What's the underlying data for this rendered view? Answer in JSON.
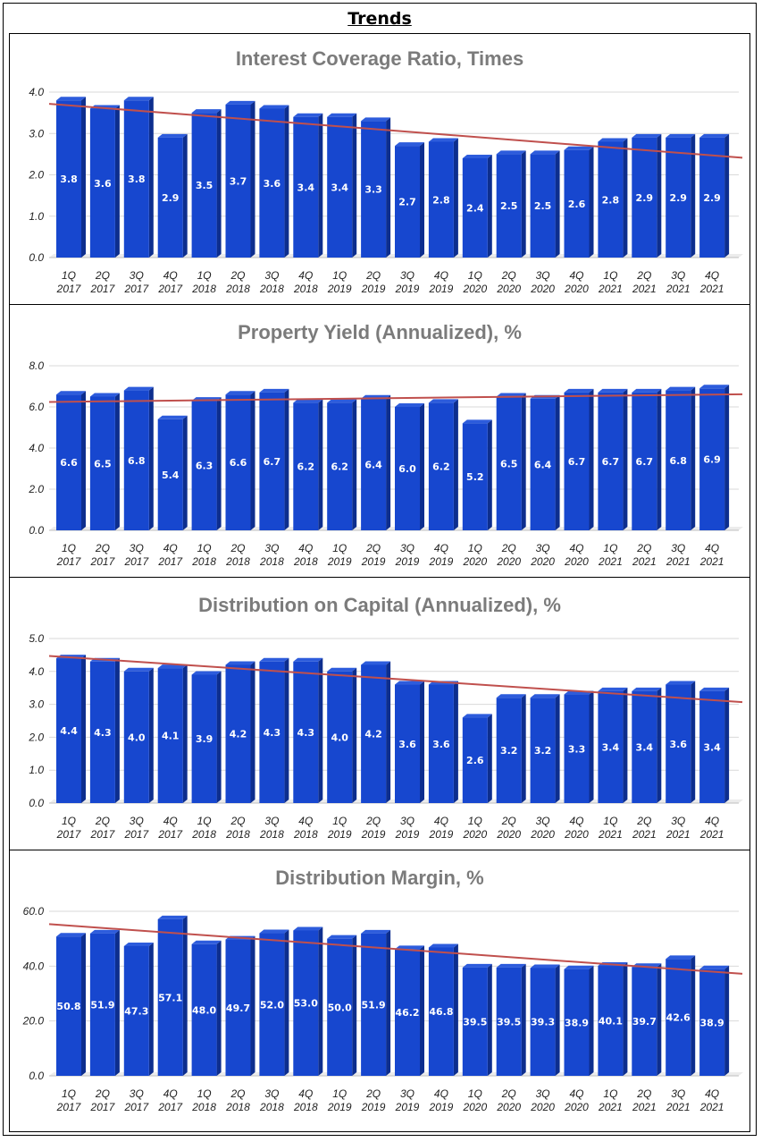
{
  "heading": "Trends",
  "categories": [
    "1Q 2017",
    "2Q 2017",
    "3Q 2017",
    "4Q 2017",
    "1Q 2018",
    "2Q 2018",
    "3Q 2018",
    "4Q 2018",
    "1Q 2019",
    "2Q 2019",
    "3Q 2019",
    "4Q 2019",
    "1Q 2020",
    "2Q 2020",
    "3Q 2020",
    "4Q 2020",
    "1Q 2021",
    "2Q 2021",
    "3Q 2021",
    "4Q 2021"
  ],
  "colors": {
    "bar_front": "#1747cf",
    "bar_side": "#0d2e8e",
    "bar_top": "#2d5cdc",
    "trend": "#c0504d",
    "grid": "#d9d9d9"
  },
  "chart_data": [
    {
      "type": "bar",
      "title": "Interest Coverage Ratio, Times",
      "xlabel": "",
      "ylabel": "",
      "ylim": [
        0,
        4
      ],
      "yticks": [
        "0.0",
        "1.0",
        "2.0",
        "3.0",
        "4.0"
      ],
      "values": [
        3.8,
        3.6,
        3.8,
        2.9,
        3.5,
        3.7,
        3.6,
        3.4,
        3.4,
        3.3,
        2.7,
        2.8,
        2.4,
        2.5,
        2.5,
        2.6,
        2.8,
        2.9,
        2.9,
        2.9
      ],
      "labels": [
        "3.8",
        "3.6",
        "3.8",
        "2.9",
        "3.5",
        "3.7",
        "3.6",
        "3.4",
        "3.4",
        "3.3",
        "2.7",
        "2.8",
        "2.4",
        "2.5",
        "2.5",
        "2.6",
        "2.8",
        "2.9",
        "2.9",
        "2.9"
      ],
      "trendline": [
        3.68,
        2.47
      ]
    },
    {
      "type": "bar",
      "title": "Property Yield (Annualized), %",
      "xlabel": "",
      "ylabel": "",
      "ylim": [
        0,
        8
      ],
      "yticks": [
        "0.0",
        "2.0",
        "4.0",
        "6.0",
        "8.0"
      ],
      "values": [
        6.6,
        6.5,
        6.8,
        5.4,
        6.3,
        6.6,
        6.7,
        6.2,
        6.2,
        6.4,
        6.0,
        6.2,
        5.2,
        6.5,
        6.4,
        6.7,
        6.7,
        6.7,
        6.8,
        6.9
      ],
      "labels": [
        "6.6",
        "6.5",
        "6.8",
        "5.4",
        "6.3",
        "6.6",
        "6.7",
        "6.2",
        "6.2",
        "6.4",
        "6.0",
        "6.2",
        "5.2",
        "6.5",
        "6.4",
        "6.7",
        "6.7",
        "6.7",
        "6.8",
        "6.9"
      ],
      "trendline": [
        6.25,
        6.6
      ]
    },
    {
      "type": "bar",
      "title": "Distribution on Capital (Annualized), %",
      "xlabel": "",
      "ylabel": "",
      "ylim": [
        0,
        5
      ],
      "yticks": [
        "0.0",
        "1.0",
        "2.0",
        "3.0",
        "4.0",
        "5.0"
      ],
      "values": [
        4.4,
        4.3,
        4.0,
        4.1,
        3.9,
        4.2,
        4.3,
        4.3,
        4.0,
        4.2,
        3.6,
        3.6,
        2.6,
        3.2,
        3.2,
        3.3,
        3.4,
        3.4,
        3.6,
        3.4
      ],
      "labels": [
        "4.4",
        "4.3",
        "4.0",
        "4.1",
        "3.9",
        "4.2",
        "4.3",
        "4.3",
        "4.0",
        "4.2",
        "3.6",
        "3.6",
        "2.6",
        "3.2",
        "3.2",
        "3.3",
        "3.4",
        "3.4",
        "3.6",
        "3.4"
      ],
      "trendline": [
        4.43,
        3.13
      ]
    },
    {
      "type": "bar",
      "title": "Distribution Margin, %",
      "xlabel": "",
      "ylabel": "",
      "ylim": [
        0,
        60
      ],
      "yticks": [
        "0.0",
        "20.0",
        "40.0",
        "60.0"
      ],
      "values": [
        50.8,
        51.9,
        47.3,
        57.1,
        48.0,
        49.7,
        52.0,
        53.0,
        50.0,
        51.9,
        46.2,
        46.8,
        39.5,
        39.5,
        39.3,
        38.9,
        40.1,
        39.7,
        42.6,
        38.9
      ],
      "labels": [
        "50.8",
        "51.9",
        "47.3",
        "57.1",
        "48.0",
        "49.7",
        "52.0",
        "53.0",
        "50.0",
        "51.9",
        "46.2",
        "46.8",
        "39.5",
        "39.5",
        "39.3",
        "38.9",
        "40.1",
        "39.7",
        "42.6",
        "38.9"
      ],
      "trendline": [
        54.8,
        38.0
      ]
    }
  ]
}
